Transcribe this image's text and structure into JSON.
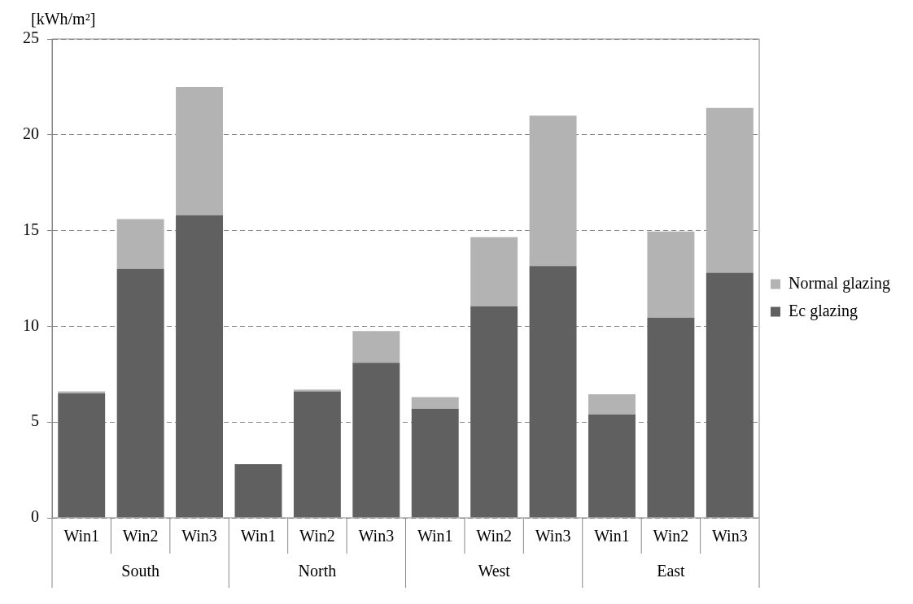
{
  "chart_data": {
    "type": "bar",
    "stacked": true,
    "ylabel": "[kWh/m²]",
    "categories": [
      "Win1",
      "Win2",
      "Win3",
      "Win1",
      "Win2",
      "Win3",
      "Win1",
      "Win2",
      "Win3",
      "Win1",
      "Win2",
      "Win3"
    ],
    "annotations": [
      "South",
      "North",
      "West",
      "East"
    ],
    "series": [
      {
        "name": "Ec glazing",
        "color": "#606060",
        "values": [
          6.5,
          13.0,
          15.8,
          2.8,
          6.6,
          8.1,
          5.7,
          11.05,
          13.15,
          5.4,
          10.45,
          12.8
        ]
      },
      {
        "name": "Normal glazing",
        "color": "#b3b3b3",
        "values": [
          0.1,
          2.6,
          6.7,
          0,
          0.1,
          1.65,
          0.6,
          3.6,
          7.85,
          1.05,
          4.5,
          8.6
        ]
      }
    ],
    "ylim": [
      0,
      25
    ],
    "yticks": [
      0,
      5,
      10,
      15,
      20,
      25
    ],
    "grid": "y",
    "legend": "right"
  }
}
